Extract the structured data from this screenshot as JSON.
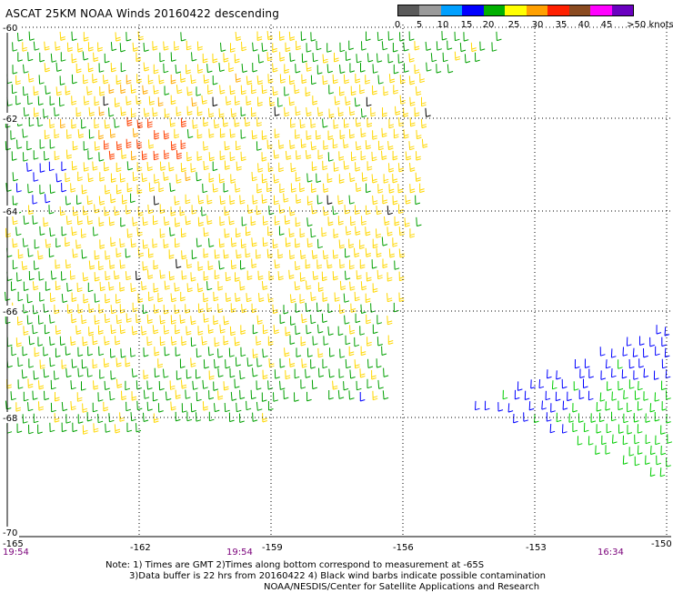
{
  "title": "ASCAT 25KM NOAA Winds 20160422 descending",
  "legend": {
    "labels": [
      "0",
      "5",
      "10",
      "15",
      "20",
      "25",
      "30",
      "35",
      "40",
      "45",
      ">50 knots"
    ],
    "colors": [
      "#5a5a5a",
      "#9a9a9a",
      "#00a0ff",
      "#0000ff",
      "#00b000",
      "#ffff00",
      "#ffa000",
      "#ff2000",
      "#8a4a20",
      "#ff00ff",
      "#6a00c0"
    ]
  },
  "map": {
    "lon_ticks": [
      "-165",
      "-162",
      "-159",
      "-156",
      "-153",
      "-150"
    ],
    "lat_ticks": [
      "-60",
      "-62",
      "-64",
      "-66",
      "-68",
      "-70"
    ],
    "time_labels": [
      "19:54",
      "19:54",
      "16:34"
    ]
  },
  "chart_data": {
    "type": "scatter",
    "x_axis": "longitude",
    "y_axis": "latitude",
    "xlim": [
      -165,
      -150
    ],
    "ylim": [
      -70,
      -60
    ],
    "gridlines": true,
    "legend_placement": "top-right",
    "colors": [
      "#00a000",
      "#ffd700",
      "#ffaa00",
      "#ff4000",
      "#0000ff",
      "#00cc00",
      "#000000"
    ],
    "regions": [
      {
        "lon_range": [
          -165,
          -156
        ],
        "lat_range": [
          -68.2,
          -60
        ],
        "dominant_speed_knots": 25,
        "color": "#ffd700"
      },
      {
        "lon_range": [
          -165,
          -160
        ],
        "lat_range": [
          -68.2,
          -60
        ],
        "dominant_speed_knots": 20,
        "color": "#00a000"
      },
      {
        "lon_range": [
          -162.5,
          -160.5
        ],
        "lat_range": [
          -62.5,
          -61.7
        ],
        "dominant_speed_knots": 30,
        "color": "#ff4000"
      },
      {
        "lon_range": [
          -155,
          -150
        ],
        "lat_range": [
          -68.5,
          -66
        ],
        "dominant_speed_knots": 15,
        "color": "#0000ff"
      },
      {
        "lon_range": [
          -153,
          -150
        ],
        "lat_range": [
          -68.5,
          -66
        ],
        "dominant_speed_knots": 20,
        "color": "#00cc00"
      }
    ]
  },
  "note": {
    "line1": "Note: 1) Times are GMT 2)Times along bottom correspond to measurement at -65S",
    "line2": "3)Data buffer is 22 hrs from 20160422 4) Black wind barbs indicate possible contamination",
    "line3": "NOAA/NESDIS/Center for Satellite Applications and Research"
  }
}
